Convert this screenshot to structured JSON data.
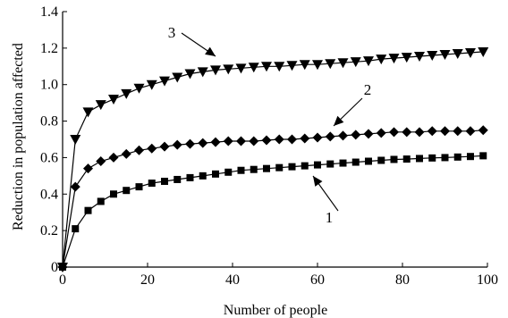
{
  "chart_data": {
    "type": "line",
    "title": "",
    "xlabel": "Number of people",
    "ylabel": "Reduction in population affected",
    "xlim": [
      0,
      100
    ],
    "ylim": [
      0,
      1.4
    ],
    "xticks": [
      0,
      20,
      40,
      60,
      80,
      100
    ],
    "yticks": [
      0,
      0.2,
      0.4,
      0.6,
      0.8,
      1.0,
      1.2,
      1.4
    ],
    "x": [
      0,
      3,
      6,
      9,
      12,
      15,
      18,
      21,
      24,
      27,
      30,
      33,
      36,
      39,
      42,
      45,
      48,
      51,
      54,
      57,
      60,
      63,
      66,
      69,
      72,
      75,
      78,
      81,
      84,
      87,
      90,
      93,
      96,
      99
    ],
    "series": [
      {
        "name": "1",
        "marker": "square",
        "values": [
          0,
          0.21,
          0.31,
          0.36,
          0.4,
          0.42,
          0.44,
          0.46,
          0.47,
          0.48,
          0.49,
          0.5,
          0.51,
          0.52,
          0.53,
          0.535,
          0.54,
          0.545,
          0.55,
          0.555,
          0.56,
          0.565,
          0.57,
          0.575,
          0.58,
          0.585,
          0.59,
          0.592,
          0.595,
          0.598,
          0.6,
          0.603,
          0.606,
          0.61
        ]
      },
      {
        "name": "2",
        "marker": "diamond",
        "values": [
          0,
          0.44,
          0.54,
          0.58,
          0.6,
          0.62,
          0.64,
          0.65,
          0.66,
          0.67,
          0.675,
          0.68,
          0.685,
          0.69,
          0.69,
          0.69,
          0.695,
          0.7,
          0.7,
          0.705,
          0.71,
          0.715,
          0.72,
          0.725,
          0.73,
          0.735,
          0.74,
          0.74,
          0.74,
          0.745,
          0.745,
          0.745,
          0.745,
          0.75
        ]
      },
      {
        "name": "3",
        "marker": "triangle-down",
        "values": [
          0,
          0.7,
          0.85,
          0.89,
          0.92,
          0.95,
          0.98,
          1.0,
          1.02,
          1.04,
          1.06,
          1.07,
          1.08,
          1.085,
          1.09,
          1.095,
          1.1,
          1.1,
          1.105,
          1.11,
          1.11,
          1.115,
          1.12,
          1.125,
          1.13,
          1.14,
          1.145,
          1.15,
          1.155,
          1.16,
          1.165,
          1.17,
          1.175,
          1.18
        ]
      }
    ],
    "annotations": [
      {
        "label": "1",
        "series": "1"
      },
      {
        "label": "2",
        "series": "2"
      },
      {
        "label": "3",
        "series": "3"
      }
    ],
    "grid": false,
    "legend": "none"
  }
}
